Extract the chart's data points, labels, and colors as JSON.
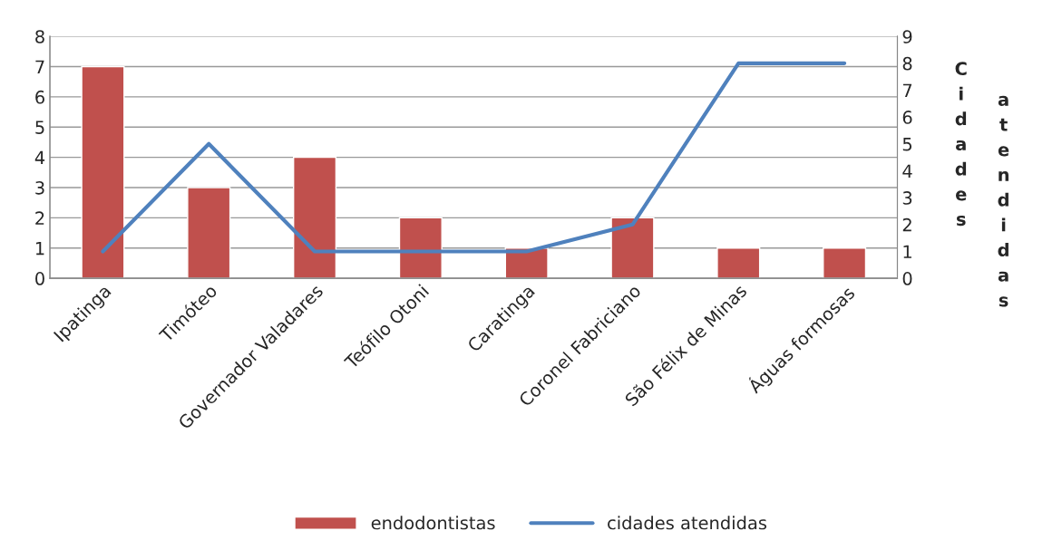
{
  "chart_data": {
    "type": "bar",
    "categories": [
      "Ipatinga",
      "Timóteo",
      "Governador Valadares",
      "Teófilo Otoni",
      "Caratinga",
      "Coronel Fabriciano",
      "São Félix de Minas",
      "Águas formosas"
    ],
    "series": [
      {
        "name": "endodontistas",
        "color": "#c0504d",
        "values": [
          7,
          3,
          4,
          2,
          1,
          2,
          1,
          1
        ]
      },
      {
        "name": "cidades atendidas",
        "type": "line",
        "axis": "y2",
        "color": "#4f81bd",
        "values": [
          1,
          5,
          1,
          1,
          1,
          2,
          8,
          8
        ]
      }
    ],
    "y2label": "Cidades atendidas",
    "ylim": [
      0,
      8
    ],
    "yticks": [
      0,
      1,
      2,
      3,
      4,
      5,
      6,
      7,
      8
    ],
    "y2lim": [
      0,
      9
    ],
    "y2ticks": [
      0,
      1,
      2,
      3,
      4,
      5,
      6,
      7,
      8,
      9
    ],
    "grid": "y",
    "legend": "bottom",
    "marker": "none"
  }
}
